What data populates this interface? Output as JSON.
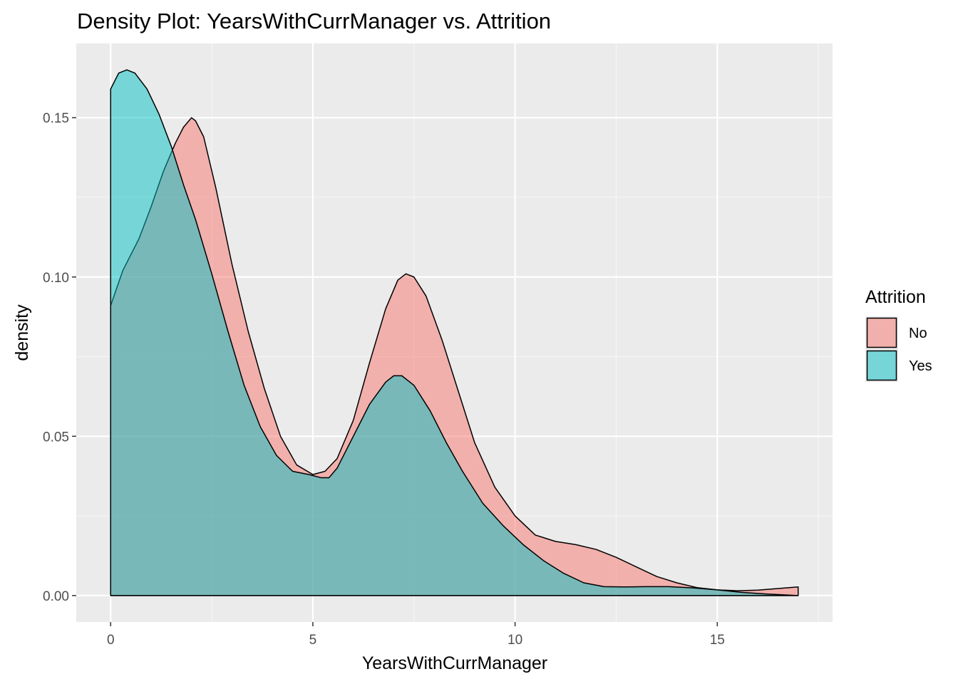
{
  "chart_data": {
    "type": "area",
    "title": "Density Plot: YearsWithCurrManager vs. Attrition",
    "xlabel": "YearsWithCurrManager",
    "ylabel": "density",
    "xlim": [
      -0.85,
      17.85
    ],
    "ylim": [
      -0.0083,
      0.1733
    ],
    "x_ticks": [
      0,
      5,
      10,
      15
    ],
    "x_tick_labels": [
      "0",
      "5",
      "10",
      "15"
    ],
    "y_ticks": [
      0.0,
      0.05,
      0.1,
      0.15
    ],
    "y_tick_labels": [
      "0.00",
      "0.05",
      "0.10",
      "0.15"
    ],
    "grid": true,
    "panel_background": "#ebebeb",
    "legend": {
      "title": "Attrition",
      "position": "right"
    },
    "series": [
      {
        "name": "No",
        "color": "#f8766d",
        "opacity": 0.5,
        "x": [
          0,
          0.3,
          0.7,
          1.0,
          1.3,
          1.6,
          1.8,
          2.0,
          2.1,
          2.3,
          2.6,
          3.0,
          3.4,
          3.8,
          4.2,
          4.6,
          5.0,
          5.3,
          5.6,
          6.0,
          6.4,
          6.8,
          7.1,
          7.3,
          7.5,
          7.8,
          8.2,
          8.6,
          9.0,
          9.5,
          10.0,
          10.5,
          11.0,
          11.5,
          12.0,
          12.5,
          13.0,
          13.5,
          14.0,
          14.5,
          15.0,
          15.5,
          16.0,
          16.5,
          17.0
        ],
        "y": [
          0.091,
          0.102,
          0.112,
          0.122,
          0.133,
          0.142,
          0.147,
          0.15,
          0.149,
          0.144,
          0.128,
          0.104,
          0.083,
          0.065,
          0.05,
          0.041,
          0.038,
          0.039,
          0.043,
          0.055,
          0.073,
          0.09,
          0.099,
          0.101,
          0.1,
          0.094,
          0.08,
          0.064,
          0.048,
          0.034,
          0.025,
          0.019,
          0.017,
          0.016,
          0.0145,
          0.012,
          0.009,
          0.006,
          0.004,
          0.0025,
          0.0018,
          0.0015,
          0.0017,
          0.0022,
          0.0027
        ]
      },
      {
        "name": "Yes",
        "color": "#00bfc4",
        "opacity": 0.5,
        "x": [
          0,
          0.2,
          0.4,
          0.6,
          0.9,
          1.2,
          1.5,
          1.8,
          2.1,
          2.5,
          2.9,
          3.3,
          3.7,
          4.1,
          4.5,
          4.9,
          5.2,
          5.4,
          5.6,
          6.0,
          6.4,
          6.8,
          7.0,
          7.2,
          7.5,
          7.9,
          8.3,
          8.7,
          9.2,
          9.7,
          10.2,
          10.7,
          11.2,
          11.7,
          12.2,
          12.7,
          13.2,
          13.8,
          14.4,
          15.0,
          15.6,
          16.2,
          17.0
        ],
        "y": [
          0.159,
          0.164,
          0.165,
          0.164,
          0.159,
          0.151,
          0.141,
          0.129,
          0.118,
          0.101,
          0.083,
          0.066,
          0.053,
          0.044,
          0.039,
          0.038,
          0.037,
          0.037,
          0.04,
          0.05,
          0.06,
          0.067,
          0.069,
          0.069,
          0.066,
          0.058,
          0.048,
          0.039,
          0.029,
          0.022,
          0.016,
          0.011,
          0.007,
          0.004,
          0.0028,
          0.0027,
          0.0028,
          0.0028,
          0.0024,
          0.0018,
          0.001,
          0.0005,
          0.0
        ]
      }
    ]
  }
}
